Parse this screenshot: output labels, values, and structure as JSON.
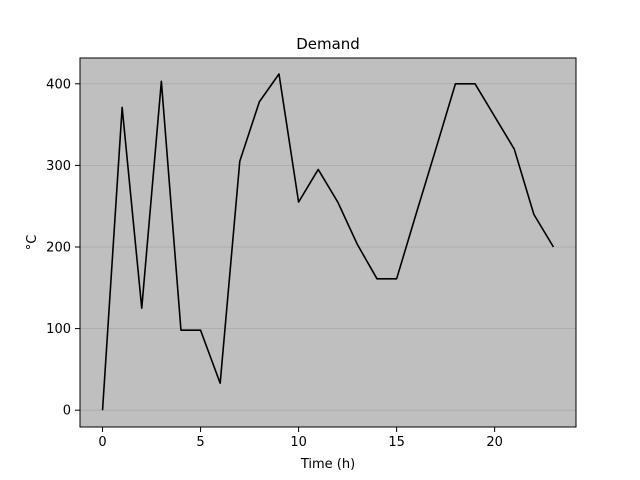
{
  "chart_data": {
    "type": "line",
    "title": "Demand",
    "xlabel": "Time (h)",
    "ylabel": "°C",
    "xlim": [
      -1.15,
      24.15
    ],
    "ylim": [
      -20.6,
      431.6
    ],
    "xticks": [
      0,
      5,
      10,
      15,
      20
    ],
    "yticks": [
      0,
      100,
      200,
      300,
      400
    ],
    "grid": "horizontal",
    "legend": "none",
    "colors": {
      "plot_background": "#bfbfbf",
      "line": "#000000",
      "grid": "#a9a9a9"
    },
    "series": [
      {
        "x": [
          0,
          1,
          2,
          3,
          4,
          5,
          6,
          7,
          8,
          9,
          10,
          11,
          12,
          13,
          14,
          15,
          16,
          17,
          18,
          19,
          20,
          21,
          22,
          23
        ],
        "y": [
          0,
          371,
          125,
          403,
          98,
          98,
          33,
          305,
          378,
          412,
          255,
          295,
          255,
          203,
          161,
          161,
          241,
          320,
          400,
          400,
          360,
          320,
          240,
          200
        ]
      }
    ]
  }
}
